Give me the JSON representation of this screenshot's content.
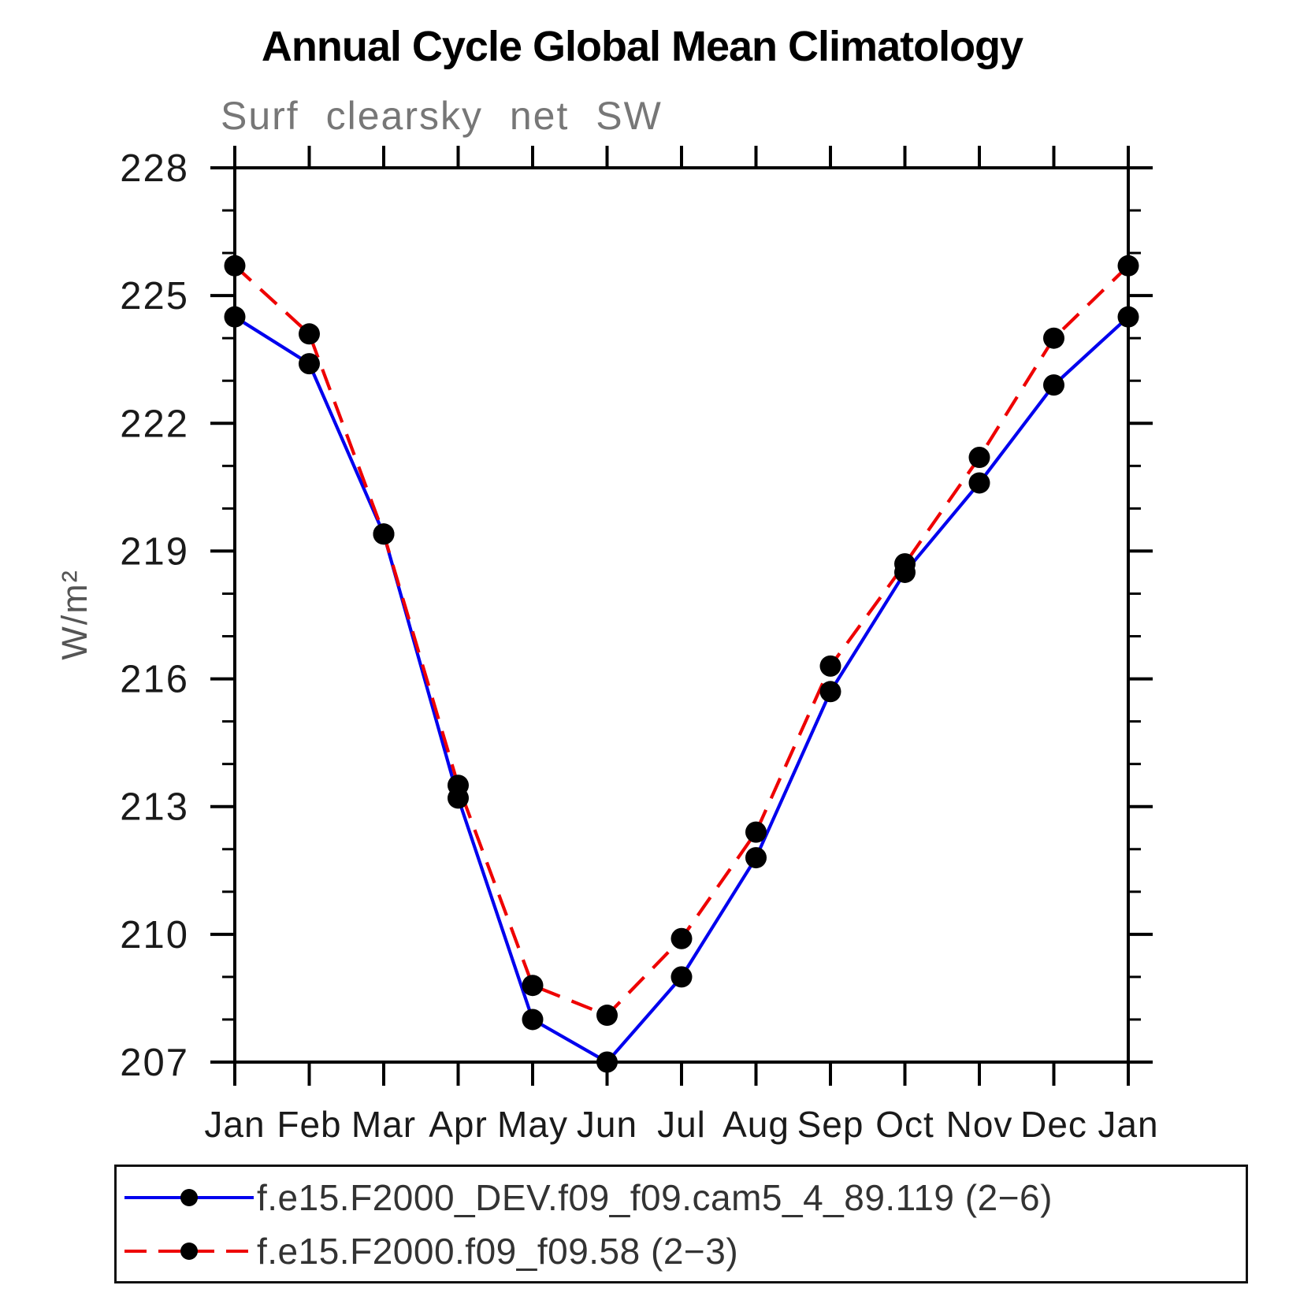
{
  "title": "Annual Cycle Global Mean Climatology",
  "subtitle": "Surf clearsky net SW",
  "chart_data": {
    "type": "line",
    "categories": [
      "Jan",
      "Feb",
      "Mar",
      "Apr",
      "May",
      "Jun",
      "Jul",
      "Aug",
      "Sep",
      "Oct",
      "Nov",
      "Dec",
      "Jan"
    ],
    "ylabel": "W/m²",
    "ylim": [
      207,
      228
    ],
    "y_major_ticks": [
      207,
      210,
      213,
      216,
      219,
      222,
      225,
      228
    ],
    "y_minor_step": 1,
    "grid": false,
    "legend_position": "bottom",
    "axis_color": "#000000",
    "tick_label_color": "#1a1a1a",
    "series": [
      {
        "name": "f.e15.F2000_DEV.f09_f09.cam5_4_89.119 (2−6)",
        "color": "#0000ee",
        "style": "solid",
        "marker": "circle",
        "marker_color": "#000000",
        "values": [
          224.5,
          223.4,
          219.4,
          213.2,
          208.0,
          207.0,
          209.0,
          211.8,
          215.7,
          218.5,
          220.6,
          222.9,
          224.5
        ]
      },
      {
        "name": "f.e15.F2000.f09_f09.58 (2−3)",
        "color": "#ee0000",
        "style": "dashed",
        "marker": "circle",
        "marker_color": "#000000",
        "values": [
          225.7,
          224.1,
          219.4,
          213.5,
          208.8,
          208.1,
          209.9,
          212.4,
          216.3,
          218.7,
          221.2,
          224.0,
          225.7
        ]
      }
    ]
  }
}
